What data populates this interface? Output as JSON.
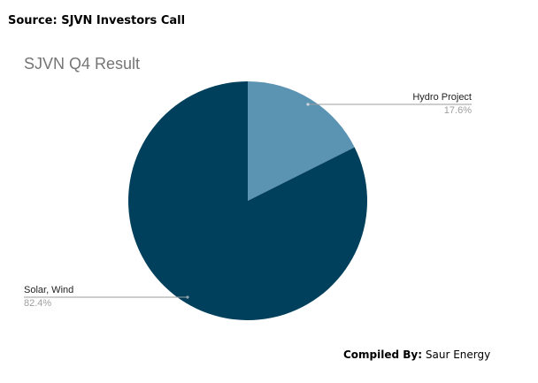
{
  "header": {
    "source": "Source: SJVN Investors Call"
  },
  "footer": {
    "compiled_label": "Compiled By:",
    "compiled_value": "Saur Energy"
  },
  "colors": {
    "hydro": "#5b93b2",
    "solar_wind": "#00405c",
    "leader": "#9e9e9e"
  },
  "chart_data": {
    "type": "pie",
    "title": "SJVN Q4 Result",
    "slices": [
      {
        "label": "Hydro Project",
        "value": 17.6,
        "value_label": "17.6%"
      },
      {
        "label": "Solar, Wind",
        "value": 82.4,
        "value_label": "82.4%"
      }
    ]
  }
}
